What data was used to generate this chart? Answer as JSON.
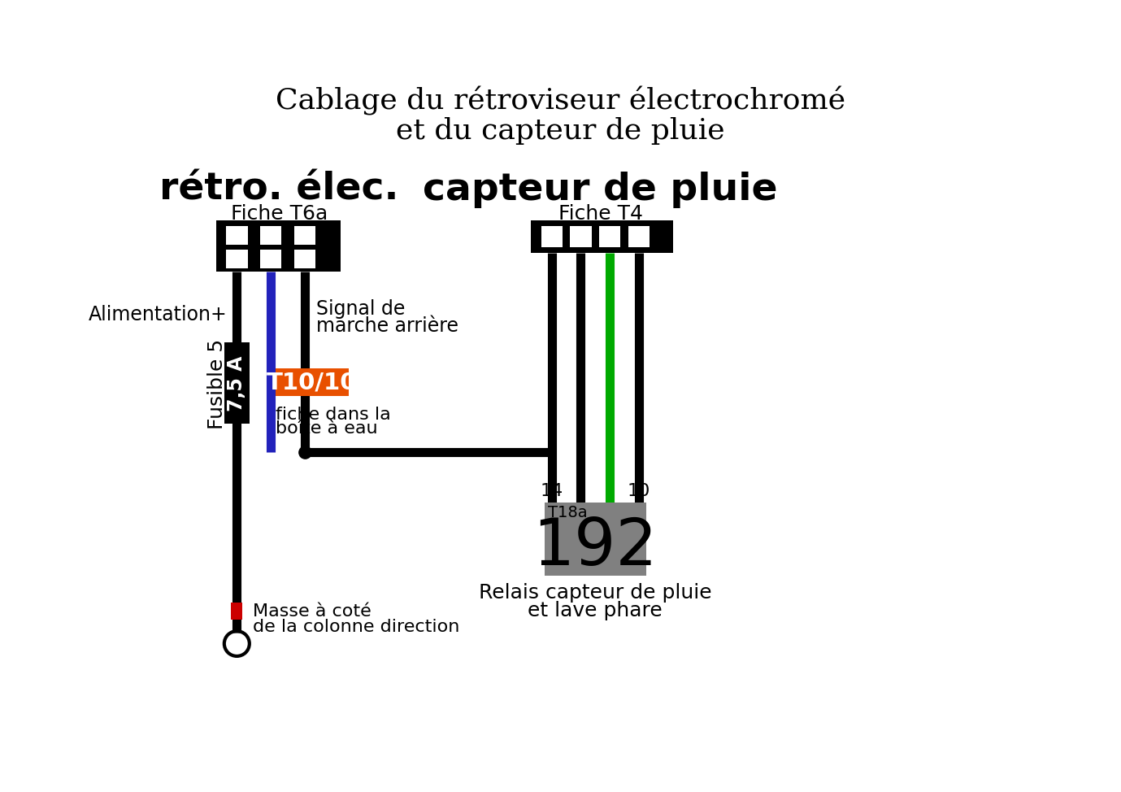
{
  "title_line1": "Cablage du rétroviseur électrochromé",
  "title_line2": "et du capteur de pluie",
  "bg_color": "#ffffff",
  "left_connector_label": "rétro. élec.",
  "left_connector_sub": "Fiche T6a",
  "right_connector_label": "capteur de pluie",
  "right_connector_sub": "Fiche T4",
  "relay_label": "192",
  "relay_sub": "T18a",
  "relay_desc1": "Relais capteur de pluie",
  "relay_desc2": "et lave phare",
  "relay_pins_left": "14",
  "relay_pins_right": "10",
  "fuse_label": "Fusible 5",
  "fuse_amp": "7,5 A",
  "alimentation_label": "Alimentation+",
  "signal_label1": "Signal de",
  "signal_label2": "marche arrière",
  "t10_label": "T10/10",
  "t10_sub1": "fiche dans la",
  "t10_sub2": "boîte à eau",
  "masse_label1": "Masse à coté",
  "masse_label2": "de la colonne direction",
  "orange_color": "#E85000",
  "green_color": "#00AA00",
  "blue_color": "#2222BB",
  "black_color": "#000000",
  "gray_color": "#808080",
  "red_color": "#CC0000",
  "white_color": "#ffffff"
}
